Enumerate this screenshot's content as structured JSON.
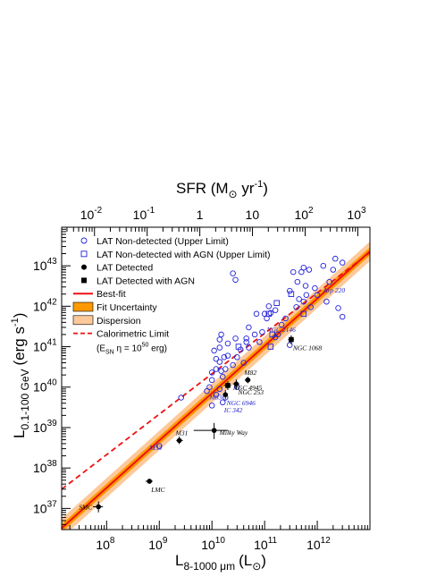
{
  "chart_data": {
    "type": "scatter",
    "title": "",
    "xlabel_main": "L",
    "xlabel_sub": "8-1000 μm",
    "xlabel_unit": "(L",
    "xlabel_unit_sub": "⊙",
    "xlabel_close": ")",
    "ylabel_main": "L",
    "ylabel_sub": "0.1-100 GeV",
    "ylabel_unit": "(erg s",
    "ylabel_unit_sup": "-1",
    "ylabel_close": ")",
    "top_xlabel": "SFR (M",
    "top_xlabel_sub": "⊙",
    "top_xlabel_unit": " yr",
    "top_xlabel_sup": "-1",
    "top_xlabel_close": ")",
    "x_scale": "log",
    "y_scale": "log",
    "xlim": [
      14000000,
      10000000000000
    ],
    "ylim": [
      3e+36,
      9e+43
    ],
    "sfr_per_lir": 1.7e-10,
    "x_ticks": [
      {
        "value": 100000000.0,
        "base": "10",
        "exp": "8"
      },
      {
        "value": 1000000000.0,
        "base": "10",
        "exp": "9"
      },
      {
        "value": 10000000000.0,
        "base": "10",
        "exp": "10"
      },
      {
        "value": 100000000000.0,
        "base": "10",
        "exp": "11"
      },
      {
        "value": 1000000000000.0,
        "base": "10",
        "exp": "12"
      }
    ],
    "y_ticks": [
      {
        "value": 1e+37,
        "base": "10",
        "exp": "37"
      },
      {
        "value": 1e+38,
        "base": "10",
        "exp": "38"
      },
      {
        "value": 1e+39,
        "base": "10",
        "exp": "39"
      },
      {
        "value": 1e+40,
        "base": "10",
        "exp": "40"
      },
      {
        "value": 1e+41,
        "base": "10",
        "exp": "41"
      },
      {
        "value": 1e+42,
        "base": "10",
        "exp": "42"
      },
      {
        "value": 1e+43,
        "base": "10",
        "exp": "43"
      }
    ],
    "top_ticks": [
      {
        "value": 0.01,
        "base": "10",
        "exp": "-2"
      },
      {
        "value": 0.1,
        "base": "10",
        "exp": "-1"
      },
      {
        "value": 1,
        "base": "1",
        "exp": ""
      },
      {
        "value": 10,
        "base": "10",
        "exp": ""
      },
      {
        "value": 100,
        "base": "10",
        "exp": "2"
      },
      {
        "value": 1000,
        "base": "10",
        "exp": "3"
      }
    ],
    "best_fit": {
      "slope": 1.17,
      "log_intercept_at_1e10": 39.85
    },
    "fit_uncertainty_half_width_dex": 0.1,
    "dispersion_half_width_dex": 0.24,
    "calorimetric": {
      "slope": 1.0,
      "log_intercept_at_1e10": 40.33
    },
    "colors": {
      "best_fit": "#ee1111",
      "fit_uncertainty": "#ff9900",
      "dispersion": "#fdc99a",
      "calorimetric": "#ee1111",
      "upper_limit": "#2222dd",
      "detected": "#000000",
      "label_blue": "#2222cc"
    },
    "legend": {
      "placement": "top-left",
      "entries": [
        {
          "symbol": "open-circle",
          "label": "LAT Non-detected (Upper Limit)"
        },
        {
          "symbol": "open-square",
          "label": "LAT Non-detected with AGN (Upper Limit)"
        },
        {
          "symbol": "filled-circle",
          "label": "LAT Detected"
        },
        {
          "symbol": "filled-square",
          "label": "LAT Detected with AGN"
        },
        {
          "symbol": "red-line",
          "label": "Best-fit"
        },
        {
          "symbol": "orange-box",
          "label": "Fit Uncertainty"
        },
        {
          "symbol": "peach-box",
          "label": "Dispersion"
        },
        {
          "symbol": "dashed-line",
          "label": "Calorimetric Limit"
        }
      ],
      "cal_note_prefix": "(E",
      "cal_note_sub": "SN",
      "cal_note_rest": " η = 10",
      "cal_note_sup": "50",
      "cal_note_end": " erg)"
    },
    "detected": [
      {
        "name": "SMC",
        "x": 70000000.0,
        "y": 1.1e+37,
        "xerr": [
          55000000.0,
          85000000.0
        ],
        "yerr": [
          8e+36,
          1.5e+37
        ],
        "agn": false,
        "label_pos": "left"
      },
      {
        "name": "LMC",
        "x": 650000000.0,
        "y": 4.7e+37,
        "xerr": [
          550000000.0,
          750000000.0
        ],
        "yerr": [
          4.2e+37,
          5.3e+37
        ],
        "agn": false,
        "label_pos": "below"
      },
      {
        "name": "M31",
        "x": 2400000000.0,
        "y": 4.8e+38,
        "xerr": [
          2100000000.0,
          2800000000.0
        ],
        "yerr": [
          3.9e+38,
          6e+38
        ],
        "agn": false,
        "label_pos": "above"
      },
      {
        "name": "Milky Way",
        "x": 11000000000.0,
        "y": 8.5e+38,
        "xerr": [
          4500000000.0,
          20000000000.0
        ],
        "yerr": [
          5.2e+38,
          1.3e+39
        ],
        "agn": false,
        "label_pos": "right"
      },
      {
        "name": "NGC 4945",
        "x": 20000000000.0,
        "y": 1.1e+40,
        "xerr": [
          17000000000.0,
          23000000000.0
        ],
        "yerr": [
          8.5e+39,
          1.4e+40
        ],
        "agn": true,
        "label_pos": "right"
      },
      {
        "name": "NGC 253",
        "x": 29000000000.0,
        "y": 1.2e+40,
        "xerr": [
          25000000000.0,
          33000000000.0
        ],
        "yerr": [
          9e+39,
          1.55e+40
        ],
        "agn": false,
        "label_pos": "below"
      },
      {
        "name": "M82",
        "x": 48000000000.0,
        "y": 1.5e+40,
        "xerr": [
          42000000000.0,
          54000000000.0
        ],
        "yerr": [
          1.25e+40,
          1.8e+40
        ],
        "agn": false,
        "label_pos": "above"
      },
      {
        "name": "NGC 1068",
        "x": 320000000000.0,
        "y": 1.5e+41,
        "xerr": [
          280000000000.0,
          360000000000.0
        ],
        "yerr": [
          1.15e+41,
          1.9e+41
        ],
        "agn": true,
        "label_pos": "below"
      },
      {
        "name": "",
        "x": 18000000000.0,
        "y": 6.5e+39,
        "xerr": [
          16000000000.0,
          20000000000.0
        ],
        "yerr": [
          5e+39,
          8.5e+39
        ],
        "agn": false,
        "label_pos": "none"
      }
    ],
    "blue_labels": [
      {
        "name": "M33",
        "x": 650000000.0,
        "y": 2.8e+38
      },
      {
        "name": "M83",
        "x": 9000000000.0,
        "y": 5e+39
      },
      {
        "name": "NGC 6946",
        "x": 19000000000.0,
        "y": 3.6e+39
      },
      {
        "name": "IC 342",
        "x": 17000000000.0,
        "y": 2.4e+39
      },
      {
        "name": "NGC 2146",
        "x": 110000000000.0,
        "y": 2.3e+41
      },
      {
        "name": "Arp 220",
        "x": 1300000000000.0,
        "y": 2.2e+42
      }
    ],
    "upper_limits": [
      {
        "x": 25000000000.0,
        "y": 6.5e+42
      },
      {
        "x": 120000000000.0,
        "y": 1e+42
      },
      {
        "x": 28000000000.0,
        "y": 4.5e+42
      },
      {
        "x": 350000000000.0,
        "y": 7e+42
      },
      {
        "x": 400000000000.0,
        "y": 9.5e+41
      },
      {
        "x": 130000000000.0,
        "y": 6.8e+41
      },
      {
        "x": 300000000000.0,
        "y": 2.4e+42
      },
      {
        "x": 420000000000.0,
        "y": 4e+42
      },
      {
        "x": 500000000000.0,
        "y": 7e+42
      },
      {
        "x": 600000000000.0,
        "y": 3.2e+42
      },
      {
        "x": 700000000000.0,
        "y": 8e+42
      },
      {
        "x": 2000000000000.0,
        "y": 8e+42
      },
      {
        "x": 2200000000000.0,
        "y": 1.5e+43
      },
      {
        "x": 1700000000000.0,
        "y": 4e+42
      },
      {
        "x": 1300000000000.0,
        "y": 1e+43
      },
      {
        "x": 3000000000000.0,
        "y": 1.2e+43
      },
      {
        "x": 550000000000.0,
        "y": 9e+42
      },
      {
        "x": 450000000000.0,
        "y": 1.5e+42
      },
      {
        "x": 550000000000.0,
        "y": 1.3e+42
      },
      {
        "x": 620000000000.0,
        "y": 1.9e+42
      },
      {
        "x": 750000000000.0,
        "y": 9.5e+41
      },
      {
        "x": 900000000000.0,
        "y": 2.8e+42
      },
      {
        "x": 1000000000000.0,
        "y": 1.9e+42
      },
      {
        "x": 1500000000000.0,
        "y": 1.3e+42
      },
      {
        "x": 2500000000000.0,
        "y": 9e+41
      },
      {
        "x": 3000000000000.0,
        "y": 5.5e+41
      },
      {
        "x": 250000000000.0,
        "y": 5e+41
      },
      {
        "x": 180000000000.0,
        "y": 2e+41
      },
      {
        "x": 160000000000.0,
        "y": 8e+41
      },
      {
        "x": 100000000000.0,
        "y": 6.5e+41
      },
      {
        "x": 300000000000.0,
        "y": 1.1e+41
      },
      {
        "x": 210000000000.0,
        "y": 3.5e+41
      },
      {
        "x": 70000000000.0,
        "y": 6.5e+41
      },
      {
        "x": 50000000000.0,
        "y": 3e+41
      },
      {
        "x": 65000000000.0,
        "y": 2e+41
      },
      {
        "x": 80000000000.0,
        "y": 1.3e+41
      },
      {
        "x": 90000000000.0,
        "y": 2.3e+41
      },
      {
        "x": 45000000000.0,
        "y": 1.3e+41
      },
      {
        "x": 35000000000.0,
        "y": 8.5e+40
      },
      {
        "x": 28000000000.0,
        "y": 1.6e+41
      },
      {
        "x": 20000000000.0,
        "y": 1.2e+41
      },
      {
        "x": 15000000000.0,
        "y": 2e+41
      },
      {
        "x": 30000000000.0,
        "y": 5.5e+40
      },
      {
        "x": 25000000000.0,
        "y": 3.5e+40
      },
      {
        "x": 40000000000.0,
        "y": 4e+40
      },
      {
        "x": 20000000000.0,
        "y": 6e+40
      },
      {
        "x": 14000000000.0,
        "y": 1.5e+41
      },
      {
        "x": 17000000000.0,
        "y": 5.5e+40
      },
      {
        "x": 11000000000.0,
        "y": 8e+40
      },
      {
        "x": 12000000000.0,
        "y": 5e+40
      },
      {
        "x": 12000000000.0,
        "y": 2.8e+40
      },
      {
        "x": 14000000000.0,
        "y": 4.2e+40
      },
      {
        "x": 10000000000.0,
        "y": 2.3e+40
      },
      {
        "x": 10000000000.0,
        "y": 1.5e+40
      },
      {
        "x": 15000000000.0,
        "y": 2.5e+40
      },
      {
        "x": 16000000000.0,
        "y": 1.8e+40
      },
      {
        "x": 18000000000.0,
        "y": 2.8e+40
      },
      {
        "x": 9000000000.0,
        "y": 1e+40
      },
      {
        "x": 8000000000.0,
        "y": 8e+39
      },
      {
        "x": 14000000000.0,
        "y": 9e+39
      },
      {
        "x": 18000000000.0,
        "y": 5.5e+39
      },
      {
        "x": 16000000000.0,
        "y": 4.2e+39
      },
      {
        "x": 10000000000.0,
        "y": 3.5e+39
      },
      {
        "x": 12000000000.0,
        "y": 6.5e+39
      },
      {
        "x": 30000000000.0,
        "y": 1e+40
      },
      {
        "x": 50000000000.0,
        "y": 9.5e+40
      },
      {
        "x": 14000000000.0,
        "y": 9.5e+40
      },
      {
        "x": 2600000000.0,
        "y": 5.5e+39
      },
      {
        "x": 1000000000.0,
        "y": 3.5e+38
      },
      {
        "x": 45000000000.0,
        "y": 1.6e+41
      },
      {
        "x": 110000000000.0,
        "y": 5e+41
      },
      {
        "x": 160000000000.0,
        "y": 1.7e+41
      }
    ],
    "upper_limits_agn": [
      {
        "x": 120000000000.0,
        "y": 6.5e+41
      },
      {
        "x": 170000000000.0,
        "y": 1.2e+42
      },
      {
        "x": 140000000000.0,
        "y": 2e+41
      },
      {
        "x": 550000000000.0,
        "y": 6.5e+41
      },
      {
        "x": 320000000000.0,
        "y": 2e+42
      },
      {
        "x": 130000000000.0,
        "y": 1e+41
      },
      {
        "x": 32000000000.0,
        "y": 1e+41
      }
    ]
  }
}
